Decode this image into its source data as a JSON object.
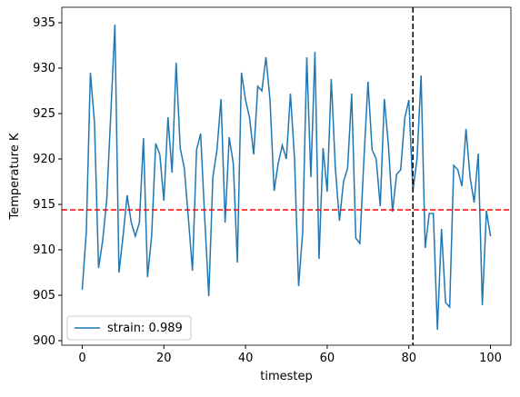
{
  "chart_data": {
    "type": "line",
    "xlabel": "timestep",
    "ylabel": "Temperature K",
    "x": [
      0,
      1,
      2,
      3,
      4,
      5,
      6,
      7,
      8,
      9,
      10,
      11,
      12,
      13,
      14,
      15,
      16,
      17,
      18,
      19,
      20,
      21,
      22,
      23,
      24,
      25,
      26,
      27,
      28,
      29,
      30,
      31,
      32,
      33,
      34,
      35,
      36,
      37,
      38,
      39,
      40,
      41,
      42,
      43,
      44,
      45,
      46,
      47,
      48,
      49,
      50,
      51,
      52,
      53,
      54,
      55,
      56,
      57,
      58,
      59,
      60,
      61,
      62,
      63,
      64,
      65,
      66,
      67,
      68,
      69,
      70,
      71,
      72,
      73,
      74,
      75,
      76,
      77,
      78,
      79,
      80,
      81,
      82,
      83,
      84,
      85,
      86,
      87,
      88,
      89,
      90,
      91,
      92,
      93,
      94,
      95,
      96,
      97,
      98,
      99,
      100
    ],
    "series": [
      {
        "name": "strain: 0.989",
        "color": "#1f77b4",
        "values": [
          905.6,
          912,
          929.5,
          924,
          908,
          911,
          915.5,
          925,
          934.8,
          907.5,
          911.5,
          916,
          913,
          911.5,
          913,
          922.3,
          907,
          911.5,
          921.7,
          920.5,
          915.4,
          924.6,
          918.5,
          930.6,
          921.2,
          919,
          913.5,
          907.7,
          921,
          922.8,
          913.5,
          904.9,
          918,
          921,
          926.6,
          913,
          922.4,
          919.5,
          908.6,
          929.5,
          926.5,
          924.5,
          920.5,
          928,
          927.5,
          931.2,
          926.5,
          916.5,
          919.5,
          921.5,
          920,
          927.2,
          920,
          906,
          912,
          931.2,
          918,
          931.8,
          909,
          921.2,
          916.4,
          928.8,
          919,
          913.2,
          917.5,
          919,
          927.2,
          911.3,
          910.7,
          920,
          928.5,
          921,
          920,
          914.8,
          926.6,
          921.5,
          914.2,
          918.3,
          918.8,
          924.5,
          926.5,
          916.5,
          920,
          929.2,
          910.2,
          914,
          914,
          901.2,
          912.3,
          904.2,
          903.7,
          919.3,
          918.8,
          917,
          923.3,
          918,
          915.2,
          920.6,
          903.9,
          914.3,
          911.5
        ]
      }
    ],
    "hline": {
      "value": 914.4,
      "color": "red"
    },
    "vline": {
      "value": 81,
      "color": "black"
    },
    "xlim": [
      -5,
      105
    ],
    "ylim": [
      899.5,
      936.7
    ],
    "xticks": [
      0,
      20,
      40,
      60,
      80,
      100
    ],
    "yticks": [
      900,
      905,
      910,
      915,
      920,
      925,
      930,
      935
    ],
    "legend": "lower left"
  }
}
